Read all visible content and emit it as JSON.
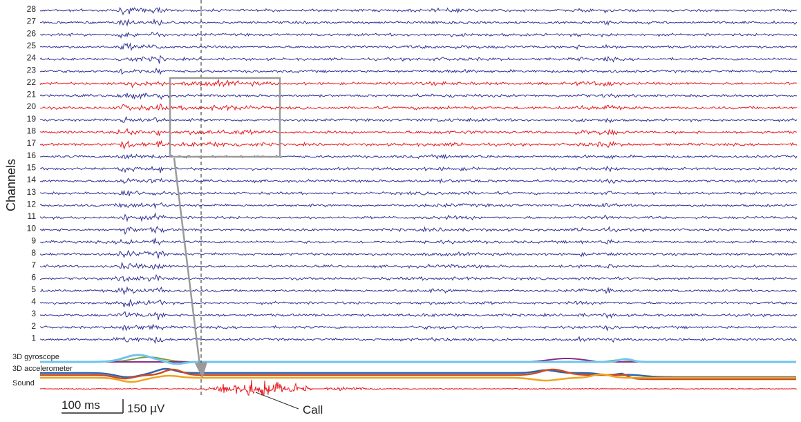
{
  "chart_data": {
    "type": "line",
    "ylabel": "Channels",
    "channels": {
      "labels": [
        "28",
        "27",
        "26",
        "25",
        "24",
        "23",
        "22",
        "21",
        "20",
        "19",
        "18",
        "17",
        "16",
        "15",
        "14",
        "13",
        "12",
        "11",
        "10",
        "9",
        "8",
        "7",
        "6",
        "5",
        "4",
        "3",
        "2",
        "1"
      ],
      "highlighted": [
        "22",
        "20",
        "18",
        "17"
      ]
    },
    "sensors": [
      {
        "name": "3D gyroscope",
        "label": "3D gyroscope"
      },
      {
        "name": "3D accelerometer",
        "label": "3D accelerometer"
      },
      {
        "name": "Sound",
        "label": "Sound"
      }
    ],
    "scale_bar": {
      "time": "100 ms",
      "voltage": "150 µV"
    },
    "annotation": "Call",
    "colors": {
      "channel": "#2e3192",
      "highlight": "#e8161b",
      "gyro": "#6cc5ea",
      "gyro_b": "#7b9e3a",
      "gyro_c": "#8b2c8b",
      "accel_a": "#cf4a1f",
      "accel_b": "#2a66b0",
      "accel_c": "#f0a31b",
      "sound": "#e8161b",
      "box": "#9a9a9a"
    }
  }
}
